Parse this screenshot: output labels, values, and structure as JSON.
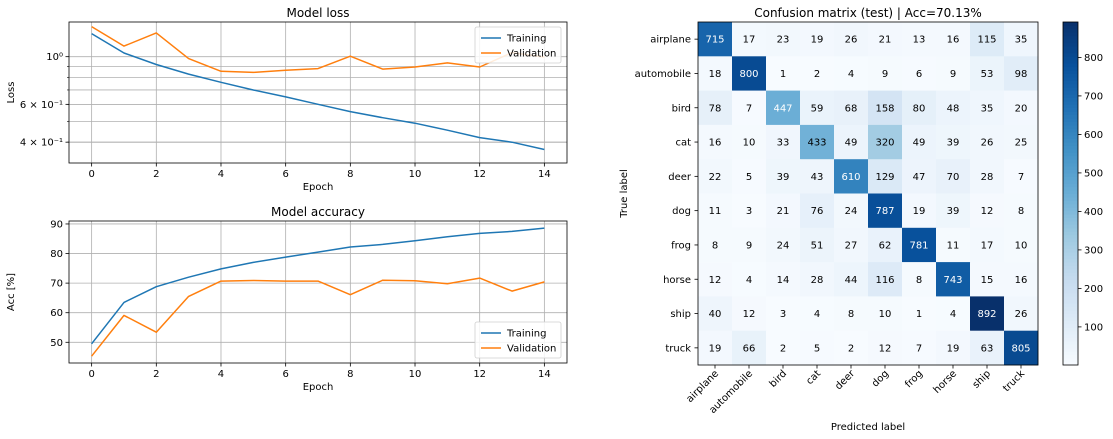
{
  "chart_data": [
    {
      "type": "line",
      "title": "Model loss",
      "xlabel": "Epoch",
      "ylabel": "Loss",
      "yscale": "log",
      "xlim": [
        -0.7,
        14.7
      ],
      "ylim": [
        0.32,
        1.45
      ],
      "grid": true,
      "legend_position": "top-right",
      "x": [
        0,
        1,
        2,
        3,
        4,
        5,
        6,
        7,
        8,
        9,
        10,
        11,
        12,
        13,
        14
      ],
      "xticks": [
        "0",
        "2",
        "4",
        "6",
        "8",
        "10",
        "12",
        "14"
      ],
      "xtick_values": [
        0,
        2,
        4,
        6,
        8,
        10,
        12,
        14
      ],
      "yticks": [
        "4 × 10⁻¹",
        "6 × 10⁻¹",
        "10⁰"
      ],
      "ytick_values": [
        0.4,
        0.6,
        1.0
      ],
      "yminor_values": [
        0.4,
        0.5,
        0.6,
        0.7,
        0.8,
        0.9
      ],
      "series": [
        {
          "name": "Training",
          "color": "#1f77b4",
          "values": [
            1.28,
            1.04,
            0.92,
            0.83,
            0.76,
            0.7,
            0.65,
            0.6,
            0.555,
            0.52,
            0.49,
            0.455,
            0.42,
            0.4,
            0.37
          ]
        },
        {
          "name": "Validation",
          "color": "#ff7f0e",
          "values": [
            1.38,
            1.12,
            1.29,
            0.98,
            0.855,
            0.845,
            0.865,
            0.88,
            1.005,
            0.875,
            0.895,
            0.935,
            0.895,
            1.045,
            0.995
          ]
        }
      ]
    },
    {
      "type": "line",
      "title": "Model accuracy",
      "xlabel": "Epoch",
      "ylabel": "Acc [%]",
      "xlim": [
        -0.7,
        14.7
      ],
      "ylim": [
        43,
        91
      ],
      "grid": true,
      "legend_position": "bottom-right",
      "x": [
        0,
        1,
        2,
        3,
        4,
        5,
        6,
        7,
        8,
        9,
        10,
        11,
        12,
        13,
        14
      ],
      "xticks": [
        "0",
        "2",
        "4",
        "6",
        "8",
        "10",
        "12",
        "14"
      ],
      "xtick_values": [
        0,
        2,
        4,
        6,
        8,
        10,
        12,
        14
      ],
      "yticks": [
        "50",
        "60",
        "70",
        "80",
        "90"
      ],
      "ytick_values": [
        50,
        60,
        70,
        80,
        90
      ],
      "series": [
        {
          "name": "Training",
          "color": "#1f77b4",
          "values": [
            49.5,
            63.5,
            68.8,
            72.0,
            74.8,
            77.0,
            78.8,
            80.5,
            82.2,
            83.1,
            84.3,
            85.7,
            86.8,
            87.5,
            88.6
          ]
        },
        {
          "name": "Validation",
          "color": "#ff7f0e",
          "values": [
            45.3,
            59.1,
            53.4,
            65.5,
            70.7,
            70.9,
            70.7,
            70.7,
            66.1,
            71.0,
            70.8,
            69.8,
            71.7,
            67.3,
            70.4
          ]
        }
      ]
    },
    {
      "type": "heatmap",
      "title": "Confusion matrix (test) | Acc=70.13%",
      "xlabel": "Predicted label",
      "ylabel": "True label",
      "colormap": "Blues",
      "vmin": 1,
      "vmax": 892,
      "colorbar_ticks": [
        "100",
        "200",
        "300",
        "400",
        "500",
        "600",
        "700",
        "800"
      ],
      "colorbar_tick_values": [
        100,
        200,
        300,
        400,
        500,
        600,
        700,
        800
      ],
      "labels": [
        "airplane",
        "automobile",
        "bird",
        "cat",
        "deer",
        "dog",
        "frog",
        "horse",
        "ship",
        "truck"
      ],
      "matrix": [
        [
          715,
          17,
          23,
          19,
          26,
          21,
          13,
          16,
          115,
          35
        ],
        [
          18,
          800,
          1,
          2,
          4,
          9,
          6,
          9,
          53,
          98
        ],
        [
          78,
          7,
          447,
          59,
          68,
          158,
          80,
          48,
          35,
          20
        ],
        [
          16,
          10,
          33,
          433,
          49,
          320,
          49,
          39,
          26,
          25
        ],
        [
          22,
          5,
          39,
          43,
          610,
          129,
          47,
          70,
          28,
          7
        ],
        [
          11,
          3,
          21,
          76,
          24,
          787,
          19,
          39,
          12,
          8
        ],
        [
          8,
          9,
          24,
          51,
          27,
          62,
          781,
          11,
          17,
          10
        ],
        [
          12,
          4,
          14,
          28,
          44,
          116,
          8,
          743,
          15,
          16
        ],
        [
          40,
          12,
          3,
          4,
          8,
          10,
          1,
          4,
          892,
          26
        ],
        [
          19,
          66,
          2,
          5,
          2,
          12,
          7,
          19,
          63,
          805
        ]
      ]
    }
  ]
}
